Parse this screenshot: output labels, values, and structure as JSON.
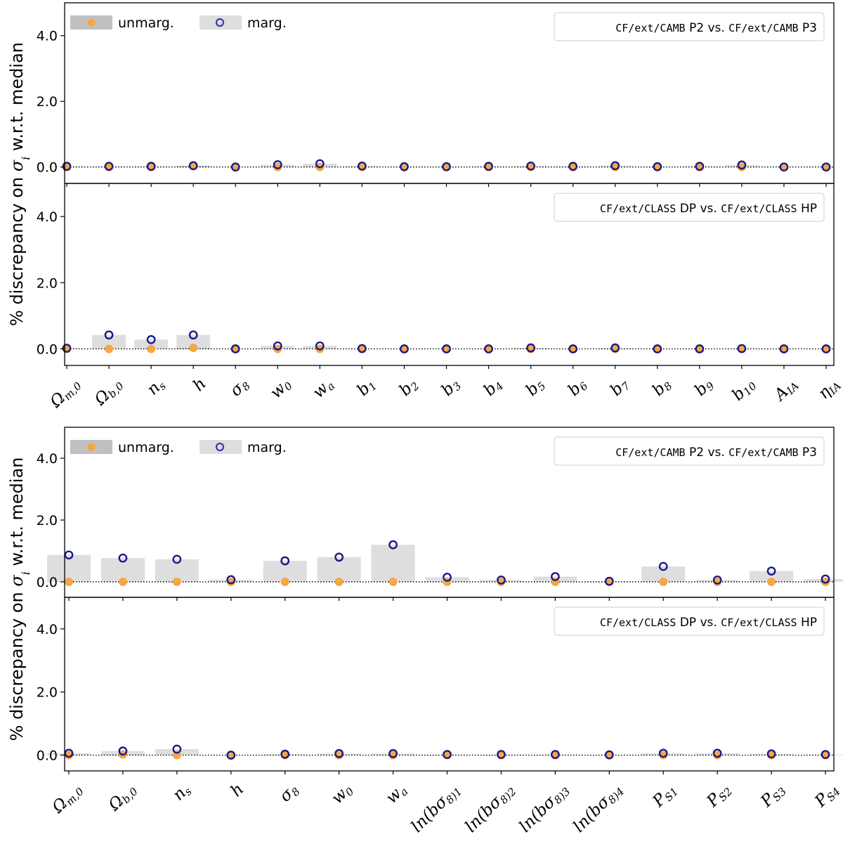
{
  "colors": {
    "unmarg_bar": "#c0c0c0",
    "marg_bar": "#dedede",
    "unmarg_point": "#f5a742",
    "marg_point": "#1a1a8c",
    "zero_line": "#000000",
    "axes": "#000000"
  },
  "figures": [
    {
      "id": "top",
      "ylabel": "% discrepancy on σ_i w.r.t. median",
      "legend": {
        "unmarg": "unmarg.",
        "marg": "marg."
      },
      "y_tick_labels": [
        "0.0",
        "2.0",
        "4.0"
      ],
      "x_tick_labels": [
        "Ω_m,0",
        "Ω_b,0",
        "n_s",
        "h",
        "σ_8",
        "w_0",
        "w_a",
        "b_1",
        "b_2",
        "b_3",
        "b_4",
        "b_5",
        "b_6",
        "b_7",
        "b_8",
        "b_9",
        "b_10",
        "A_IA",
        "η_IA"
      ]
    },
    {
      "id": "bottom",
      "ylabel": "% discrepancy on σ_i w.r.t. median",
      "legend": {
        "unmarg": "unmarg.",
        "marg": "marg."
      },
      "y_tick_labels": [
        "0.0",
        "2.0",
        "4.0"
      ],
      "x_tick_labels": [
        "Ω_m,0",
        "Ω_b,0",
        "n_s",
        "h",
        "σ_8",
        "w_0",
        "w_a",
        "ln(bσ_8)_1",
        "ln(bσ_8)_2",
        "ln(bσ_8)_3",
        "ln(bσ_8)_4",
        "P_S1",
        "P_S2",
        "P_S3",
        "P_S4"
      ]
    }
  ],
  "chart_data": [
    {
      "type": "bar",
      "title": "CF/ext/CAMB P2 vs. CF/ext/CAMB P3",
      "title_parts": {
        "code1": "CF/ext/CAMB",
        "t1": " P2 vs. ",
        "code2": "CF/ext/CAMB",
        "t2": " P3"
      },
      "ylabel": "% discrepancy on σ_i w.r.t. median",
      "ylim": [
        -0.5,
        5.0
      ],
      "yticks": [
        0.0,
        2.0,
        4.0
      ],
      "legend": "top-left",
      "categories": [
        "Ω_m,0",
        "Ω_b,0",
        "n_s",
        "h",
        "σ_8",
        "w_0",
        "w_a",
        "b_1",
        "b_2",
        "b_3",
        "b_4",
        "b_5",
        "b_6",
        "b_7",
        "b_8",
        "b_9",
        "b_10",
        "A_IA",
        "η_IA"
      ],
      "series": [
        {
          "name": "unmarg.",
          "values": [
            0.0,
            0.0,
            0.0,
            0.03,
            0.0,
            0.0,
            0.0,
            0.0,
            0.0,
            0.0,
            0.0,
            0.0,
            0.0,
            0.0,
            0.0,
            0.0,
            0.0,
            0.0,
            0.0
          ]
        },
        {
          "name": "marg.",
          "values": [
            0.02,
            0.02,
            0.02,
            0.04,
            0.0,
            0.07,
            0.1,
            0.03,
            0.01,
            0.01,
            0.02,
            0.03,
            0.02,
            0.04,
            0.01,
            0.02,
            0.06,
            0.0,
            0.0
          ]
        }
      ]
    },
    {
      "type": "bar",
      "title": "CF/ext/CLASS DP vs. CF/ext/CLASS HP",
      "title_parts": {
        "code1": "CF/ext/CLASS",
        "t1": " DP vs. ",
        "code2": "CF/ext/CLASS",
        "t2": " HP"
      },
      "ylabel": "% discrepancy on σ_i w.r.t. median",
      "ylim": [
        -0.5,
        5.0
      ],
      "yticks": [
        0.0,
        2.0,
        4.0
      ],
      "categories": [
        "Ω_m,0",
        "Ω_b,0",
        "n_s",
        "h",
        "σ_8",
        "w_0",
        "w_a",
        "b_1",
        "b_2",
        "b_3",
        "b_4",
        "b_5",
        "b_6",
        "b_7",
        "b_8",
        "b_9",
        "b_10",
        "A_IA",
        "η_IA"
      ],
      "series": [
        {
          "name": "unmarg.",
          "values": [
            0.0,
            0.0,
            0.0,
            0.03,
            0.0,
            0.0,
            0.0,
            0.0,
            0.0,
            0.0,
            0.0,
            0.0,
            0.0,
            0.0,
            0.0,
            0.0,
            0.0,
            0.0,
            0.0
          ]
        },
        {
          "name": "marg.",
          "values": [
            0.02,
            0.42,
            0.28,
            0.42,
            0.0,
            0.09,
            0.09,
            0.01,
            0.0,
            0.0,
            0.0,
            0.03,
            0.0,
            0.03,
            0.0,
            0.0,
            0.01,
            0.0,
            0.0
          ]
        }
      ]
    },
    {
      "type": "bar",
      "title": "CF/ext/CAMB P2 vs. CF/ext/CAMB P3",
      "title_parts": {
        "code1": "CF/ext/CAMB",
        "t1": " P2 vs. ",
        "code2": "CF/ext/CAMB",
        "t2": " P3"
      },
      "ylabel": "% discrepancy on σ_i w.r.t. median",
      "ylim": [
        -0.5,
        5.0
      ],
      "yticks": [
        0.0,
        2.0,
        4.0
      ],
      "legend": "top-left",
      "categories": [
        "Ω_m,0",
        "Ω_b,0",
        "n_s",
        "h",
        "σ_8",
        "w_0",
        "w_a",
        "ln(bσ_8)_1",
        "ln(bσ_8)_2",
        "ln(bσ_8)_3",
        "ln(bσ_8)_4",
        "P_S1",
        "P_S2",
        "P_S3",
        "P_S4"
      ],
      "series": [
        {
          "name": "unmarg.",
          "values": [
            0.0,
            0.0,
            0.0,
            0.0,
            0.0,
            0.0,
            0.0,
            0.0,
            0.0,
            0.0,
            0.0,
            0.0,
            0.0,
            0.0,
            0.0
          ]
        },
        {
          "name": "marg.",
          "values": [
            0.87,
            0.77,
            0.73,
            0.07,
            0.68,
            0.8,
            1.2,
            0.15,
            0.06,
            0.17,
            0.02,
            0.5,
            0.06,
            0.35,
            0.09
          ]
        }
      ]
    },
    {
      "type": "bar",
      "title": "CF/ext/CLASS DP vs. CF/ext/CLASS HP",
      "title_parts": {
        "code1": "CF/ext/CLASS",
        "t1": " DP vs. ",
        "code2": "CF/ext/CLASS",
        "t2": " HP"
      },
      "ylabel": "% discrepancy on σ_i w.r.t. median",
      "ylim": [
        -0.5,
        5.0
      ],
      "yticks": [
        0.0,
        2.0,
        4.0
      ],
      "categories": [
        "Ω_m,0",
        "Ω_b,0",
        "n_s",
        "h",
        "σ_8",
        "w_0",
        "w_a",
        "ln(bσ_8)_1",
        "ln(bσ_8)_2",
        "ln(bσ_8)_3",
        "ln(bσ_8)_4",
        "P_S1",
        "P_S2",
        "P_S3",
        "P_S4"
      ],
      "series": [
        {
          "name": "unmarg.",
          "values": [
            0.0,
            0.02,
            0.0,
            0.0,
            0.0,
            0.0,
            0.0,
            0.0,
            0.0,
            0.0,
            0.0,
            0.0,
            0.0,
            0.0,
            0.0
          ]
        },
        {
          "name": "marg.",
          "values": [
            0.06,
            0.13,
            0.19,
            0.0,
            0.03,
            0.05,
            0.05,
            0.02,
            0.02,
            0.02,
            0.01,
            0.06,
            0.06,
            0.04,
            0.02
          ]
        }
      ]
    }
  ]
}
